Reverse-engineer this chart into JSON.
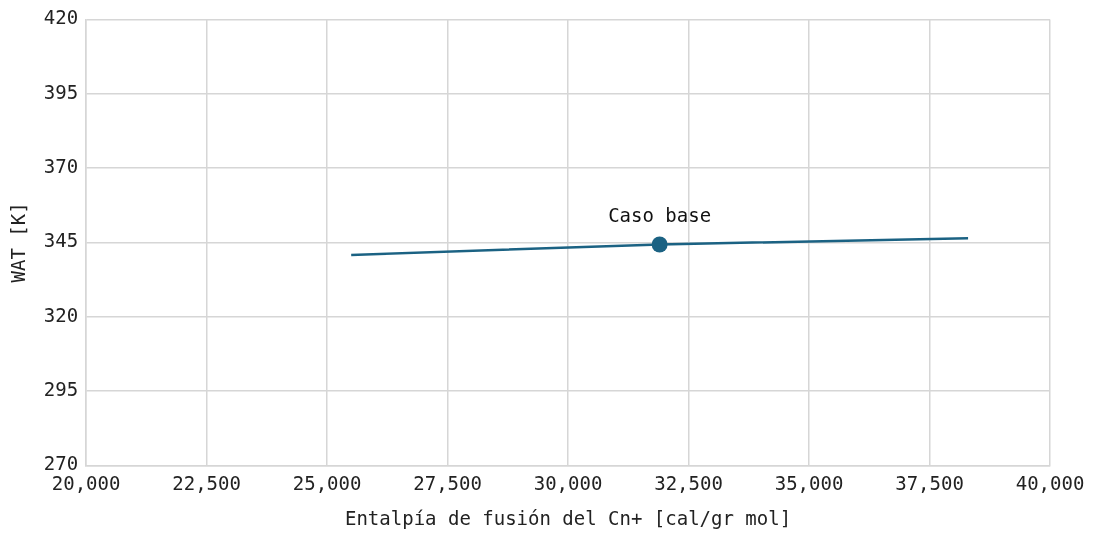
{
  "chart_data": {
    "type": "line",
    "xlabel": "Entalpía de fusión del Cn+ [cal/gr mol]",
    "ylabel": "WAT [K]",
    "series": [
      {
        "type": "line",
        "color": "#1b6283",
        "x": [
          25500,
          31900,
          38300
        ],
        "values": [
          340.8,
          344.3,
          346.4
        ],
        "marker": "none"
      },
      {
        "type": "scatter",
        "color": "#1b6283",
        "x": [
          31900
        ],
        "values": [
          344.3
        ],
        "marker": "circle"
      }
    ],
    "xlim": [
      20000,
      40000
    ],
    "xticks": [
      {
        "value": 20000,
        "label": "20,000"
      },
      {
        "value": 22500,
        "label": "22,500"
      },
      {
        "value": 25000,
        "label": "25,000"
      },
      {
        "value": 27500,
        "label": "27,500"
      },
      {
        "value": 30000,
        "label": "30,000"
      },
      {
        "value": 32500,
        "label": "32,500"
      },
      {
        "value": 35000,
        "label": "35,000"
      },
      {
        "value": 37500,
        "label": "37,500"
      },
      {
        "value": 40000,
        "label": "40,000"
      }
    ],
    "ylim": [
      270,
      420
    ],
    "yticks": [
      270,
      295,
      320,
      345,
      370,
      395,
      420
    ],
    "grid": true,
    "legend": false,
    "annotations": [
      {
        "text": "Caso base",
        "x": 31900,
        "y": 344.3
      }
    ]
  }
}
